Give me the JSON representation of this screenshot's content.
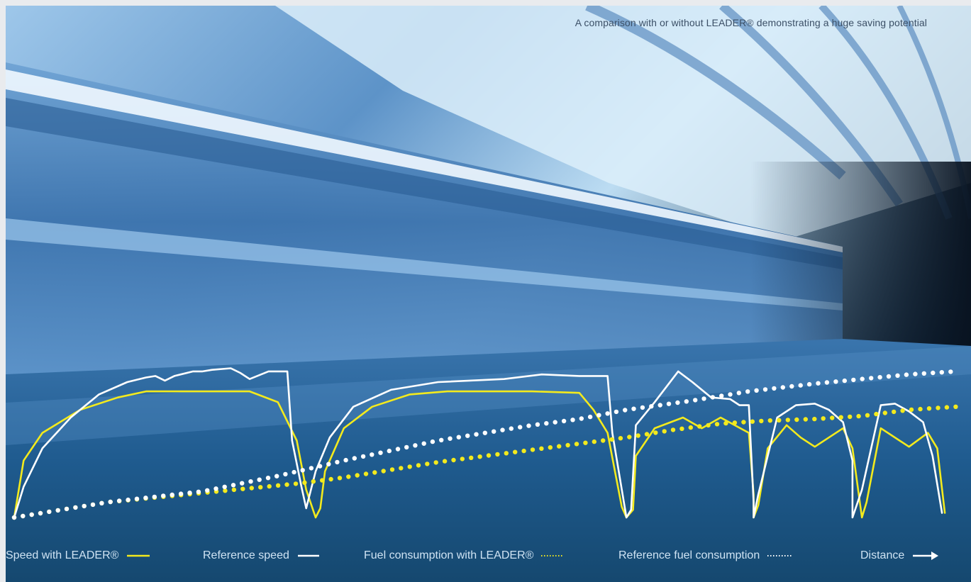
{
  "caption": "A comparison with or without LEADER® demonstrating a huge saving potential",
  "colors": {
    "with_leader": "#f3ea1d",
    "reference": "#ffffff",
    "background_dark": "#15486f"
  },
  "legend": {
    "speed_with_leader": "Speed with LEADER®",
    "reference_speed": "Reference speed",
    "fuel_with_leader": "Fuel consumption with LEADER®",
    "reference_fuel": "Reference fuel consumption",
    "distance": "Distance"
  },
  "chart_data": {
    "type": "line",
    "title": "A comparison with or without LEADER® demonstrating a huge saving potential",
    "xlabel": "Distance",
    "ylabel": "",
    "xlim": [
      0,
      100
    ],
    "ylim": [
      0,
      100
    ],
    "grid": false,
    "legend_placement": "bottom",
    "series": [
      {
        "name": "Speed with LEADER®",
        "style": "solid",
        "color": "#f3ea1d",
        "points": [
          [
            0,
            0
          ],
          [
            1,
            37
          ],
          [
            3,
            55
          ],
          [
            7,
            70
          ],
          [
            11,
            78
          ],
          [
            14,
            82
          ],
          [
            18,
            82
          ],
          [
            21,
            82
          ],
          [
            25,
            82
          ],
          [
            28,
            75
          ],
          [
            30,
            50
          ],
          [
            31,
            18
          ],
          [
            32,
            0
          ],
          [
            32.5,
            6
          ],
          [
            33,
            30
          ],
          [
            35,
            58
          ],
          [
            38,
            72
          ],
          [
            42,
            80
          ],
          [
            46,
            82
          ],
          [
            51,
            82
          ],
          [
            55,
            82
          ],
          [
            60,
            81
          ],
          [
            61.5,
            70
          ],
          [
            63,
            55
          ],
          [
            64.5,
            7
          ],
          [
            65,
            0
          ],
          [
            65.7,
            5
          ],
          [
            66,
            40
          ],
          [
            68,
            58
          ],
          [
            71,
            65
          ],
          [
            73,
            58
          ],
          [
            75,
            65
          ],
          [
            78,
            55
          ],
          [
            78.5,
            15
          ],
          [
            78.5,
            0
          ],
          [
            79,
            8
          ],
          [
            80,
            45
          ],
          [
            82,
            60
          ],
          [
            83.5,
            52
          ],
          [
            85,
            46
          ],
          [
            88,
            58
          ],
          [
            89,
            45
          ],
          [
            90,
            0
          ],
          [
            90.5,
            10
          ],
          [
            92,
            58
          ],
          [
            94,
            50
          ],
          [
            95,
            46
          ],
          [
            97,
            55
          ],
          [
            98,
            45
          ],
          [
            98.8,
            3
          ]
        ]
      },
      {
        "name": "Reference speed",
        "style": "solid",
        "color": "#ffffff",
        "points": [
          [
            0,
            0
          ],
          [
            1,
            20
          ],
          [
            3,
            45
          ],
          [
            6,
            65
          ],
          [
            9,
            80
          ],
          [
            12,
            88
          ],
          [
            14,
            91
          ],
          [
            15,
            92
          ],
          [
            16,
            89
          ],
          [
            17,
            92
          ],
          [
            19,
            95
          ],
          [
            20,
            95
          ],
          [
            21,
            96
          ],
          [
            23,
            97
          ],
          [
            24,
            94
          ],
          [
            25,
            90
          ],
          [
            27,
            95
          ],
          [
            29,
            95
          ],
          [
            29.5,
            50
          ],
          [
            30.5,
            20
          ],
          [
            31,
            6
          ],
          [
            32,
            30
          ],
          [
            33.5,
            52
          ],
          [
            36,
            72
          ],
          [
            40,
            83
          ],
          [
            45,
            88
          ],
          [
            52,
            90
          ],
          [
            56,
            93
          ],
          [
            60,
            92
          ],
          [
            63,
            92
          ],
          [
            63.5,
            55
          ],
          [
            65,
            0
          ],
          [
            65.5,
            5
          ],
          [
            66,
            60
          ],
          [
            68,
            75
          ],
          [
            70.5,
            95
          ],
          [
            72,
            88
          ],
          [
            74,
            78
          ],
          [
            76,
            77
          ],
          [
            77,
            73
          ],
          [
            78,
            73
          ],
          [
            78.5,
            10
          ],
          [
            78.5,
            0
          ],
          [
            79,
            15
          ],
          [
            81,
            65
          ],
          [
            83,
            73
          ],
          [
            85,
            74
          ],
          [
            86.5,
            70
          ],
          [
            88,
            62
          ],
          [
            89,
            37
          ],
          [
            89,
            0
          ],
          [
            90,
            18
          ],
          [
            92,
            73
          ],
          [
            93.5,
            74
          ],
          [
            95,
            69
          ],
          [
            96.5,
            62
          ],
          [
            97.5,
            40
          ],
          [
            98.5,
            3
          ]
        ]
      },
      {
        "name": "Fuel consumption with LEADER®",
        "style": "dotted",
        "color": "#f3ea1d",
        "points": [
          [
            0,
            0
          ],
          [
            10,
            10
          ],
          [
            20,
            16
          ],
          [
            30,
            22
          ],
          [
            35,
            26
          ],
          [
            45,
            36
          ],
          [
            55,
            44
          ],
          [
            60,
            48
          ],
          [
            65,
            52
          ],
          [
            70,
            57
          ],
          [
            75,
            61
          ],
          [
            80,
            63
          ],
          [
            85,
            64
          ],
          [
            90,
            66
          ],
          [
            95,
            70
          ],
          [
            100,
            72
          ]
        ]
      },
      {
        "name": "Reference fuel consumption",
        "style": "dotted",
        "color": "#ffffff",
        "points": [
          [
            0,
            0
          ],
          [
            10,
            10
          ],
          [
            20,
            17
          ],
          [
            28,
            27
          ],
          [
            35,
            37
          ],
          [
            45,
            50
          ],
          [
            55,
            60
          ],
          [
            60,
            64
          ],
          [
            65,
            70
          ],
          [
            72,
            76
          ],
          [
            78,
            82
          ],
          [
            85,
            87
          ],
          [
            90,
            90
          ],
          [
            95,
            93
          ],
          [
            100,
            95
          ]
        ]
      }
    ]
  }
}
